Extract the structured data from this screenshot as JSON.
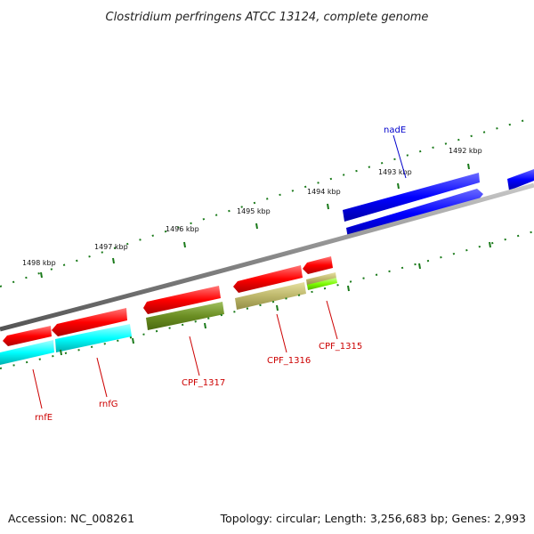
{
  "title": "Clostridium perfringens ATCC 13124, complete genome",
  "footer": {
    "accession": "Accession: NC_008261",
    "topology": "Topology: circular; Length: 3,256,683 bp; Genes: 2,993"
  },
  "scale_labels": [
    "1498 kbp",
    "1497 kbp",
    "1496 kbp",
    "1495 kbp",
    "1494 kbp",
    "1493 kbp",
    "1492 kbp"
  ],
  "gene_labels": [
    "nadE",
    "rnfE",
    "rnfG",
    "CPF_1317",
    "CPF_1316",
    "CPF_1315"
  ],
  "colors": {
    "backbone": "#888888",
    "ticks": "#1a7a1a",
    "cds": "#ff0000",
    "gene_plus": "#0000ff",
    "cyan": "#00ffff",
    "olive": "#6b8e23",
    "khaki": "#bdb76b",
    "lime": "#7cfc00",
    "label_red": "#cc0000",
    "label_blue": "#0000cc"
  }
}
